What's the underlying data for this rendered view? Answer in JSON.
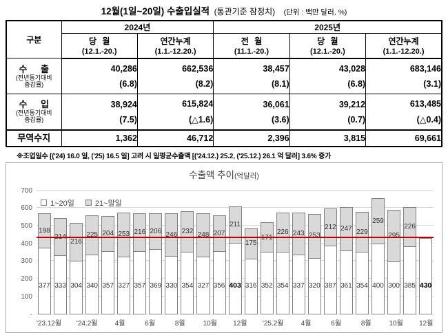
{
  "page_title": {
    "main": "12월(1일~20일) 수출입실적",
    "sub": "(통관기준 잠정치)",
    "unit": "(단위 : 백만 달러, %)"
  },
  "table": {
    "corner": "구분",
    "year_2024": "2024년",
    "year_2025": "2025년",
    "columns": [
      {
        "title": "당 월",
        "period": "(12.1.-20.)"
      },
      {
        "title": "연간누계",
        "period": "(1.1.-12.20.)"
      },
      {
        "title": "전 월",
        "period": "(11.1.-20.)"
      },
      {
        "title": "당 월",
        "period": "(12.1.-20.)"
      },
      {
        "title": "연간누계",
        "period": "(1.1.-12.20.)"
      }
    ],
    "rows": [
      {
        "label": "수 출",
        "sublabel_line1": "(전년동기대비",
        "sublabel_line2": "증감률)",
        "values": [
          "40,286",
          "662,536",
          "38,457",
          "43,028",
          "683,146"
        ],
        "rates": [
          "(6.8)",
          "(8.2)",
          "(8.1)",
          "(6.8)",
          "(3.1)"
        ]
      },
      {
        "label": "수 입",
        "sublabel_line1": "(전년동기대비",
        "sublabel_line2": "증감률)",
        "values": [
          "38,924",
          "615,824",
          "36,061",
          "39,212",
          "613,485"
        ],
        "rates": [
          "(7.5)",
          "(△1.6)",
          "(3.6)",
          "(0.7)",
          "(△0.4)"
        ]
      },
      {
        "label": "무역수지",
        "values": [
          "1,362",
          "46,712",
          "2,396",
          "3,815",
          "69,661"
        ]
      }
    ]
  },
  "note": "※조업일수 [('24) 16.0 일, ('25) 16.5 일] 고려 시 일평균수출액 [('24.12.) 25.2, ('25.12.) 26.1 억 달러] 3.6% 증가",
  "chart_data": {
    "type": "bar",
    "stacked": true,
    "title": "수출액 추이",
    "title_unit": "(억달러)",
    "legend": [
      "1~20일",
      "21~말일"
    ],
    "legend_position": "top-left",
    "grid": true,
    "ylim": [
      0,
      700
    ],
    "ytick_step": 100,
    "zero_tick_label": "-",
    "bar_count": 25,
    "xtick_labels": [
      "'23.12월",
      "'24.2월",
      "4월",
      "6월",
      "8월",
      "10월",
      "12월",
      "'25.2월",
      "4월",
      "6월",
      "8월",
      "10월",
      "12월"
    ],
    "xtick_every": 2,
    "series": [
      {
        "name": "1~20일",
        "color": "#ffffff",
        "values": [
          377,
          333,
          304,
          340,
          357,
          327,
          357,
          369,
          330,
          354,
          327,
          356,
          403,
          316,
          352,
          354,
          337,
          320,
          387,
          361,
          354,
          400,
          300,
          385,
          430
        ]
      },
      {
        "name": "21~말일",
        "color": "#d9d9d9",
        "values": [
          198,
          214,
          216,
          225,
          204,
          253,
          216,
          206,
          246,
          232,
          248,
          207,
          211,
          175,
          171,
          226,
          243,
          253,
          212,
          247,
          229,
          259,
          295,
          226,
          null
        ]
      }
    ],
    "bold_value_indices": [
      12,
      24
    ],
    "reference_line": {
      "value": 430,
      "color": "#bf0000"
    }
  }
}
